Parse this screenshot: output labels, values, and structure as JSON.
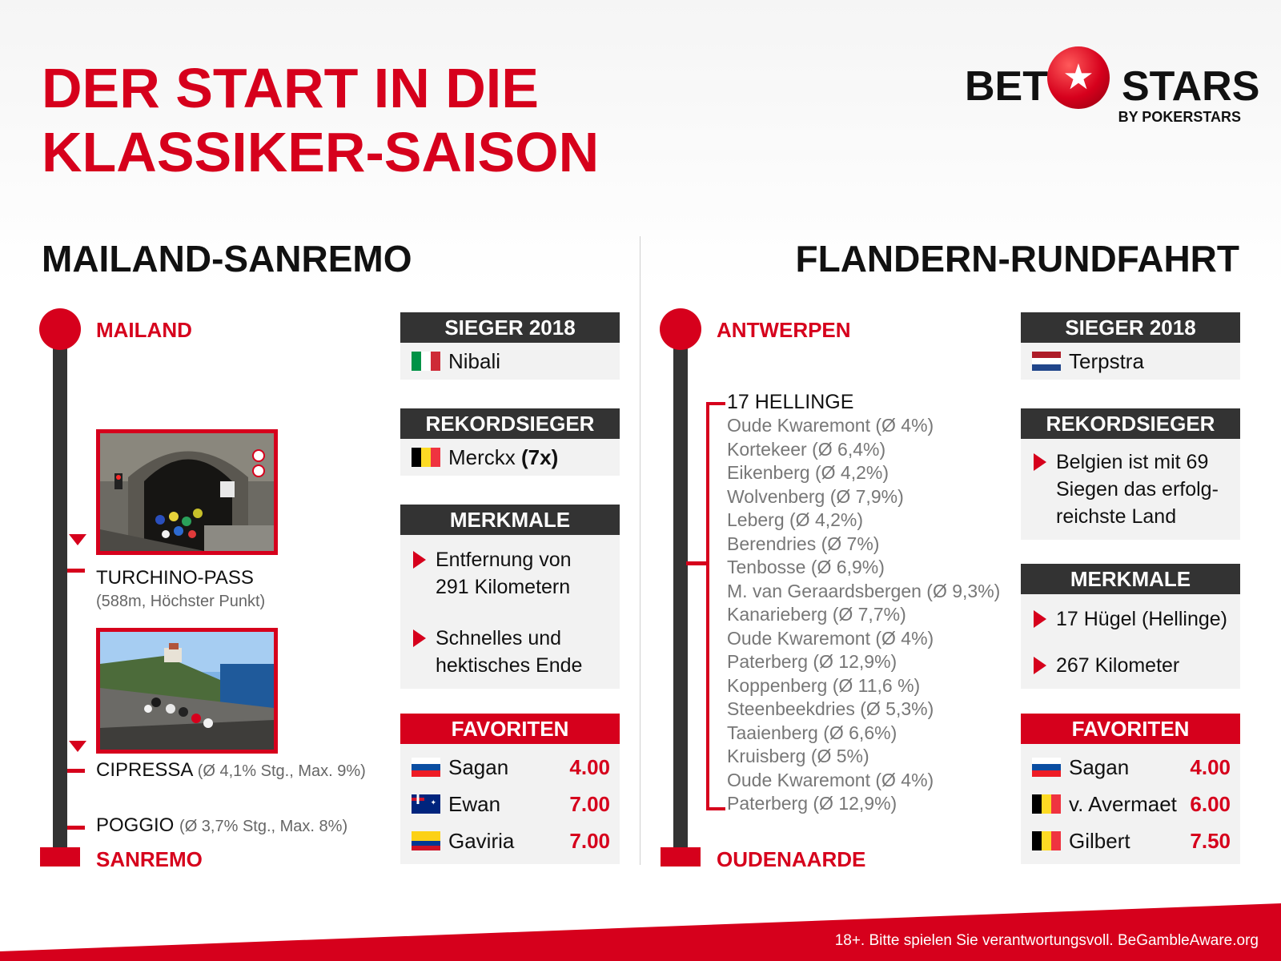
{
  "title": {
    "line1": "DER START IN DIE",
    "line2": "KLASSIKER-SAISON"
  },
  "logo": {
    "left": "BET",
    "right": "STARS",
    "sub": "BY POKERSTARS",
    "icon": "star-icon"
  },
  "left": {
    "section_title": "MAILAND-SANREMO",
    "start_city": "MAILAND",
    "end_city": "SANREMO",
    "stops": [
      {
        "name": "TURCHINO-PASS",
        "detail": "(588m, Höchster Punkt)"
      },
      {
        "name": "CIPRESSA",
        "detail": "(Ø 4,1% Stg., Max. 9%)"
      },
      {
        "name": "POGGIO",
        "detail": "(Ø 3,7% Stg., Max. 8%)"
      }
    ],
    "sieger": {
      "header": "SIEGER 2018",
      "name": "Nibali",
      "flag": "italy-flag"
    },
    "rekord": {
      "header": "REKORDSIEGER",
      "name": "Merckx",
      "count": "(7x)",
      "flag": "belgium-flag"
    },
    "merkmale": {
      "header": "MERKMALE",
      "items": [
        {
          "line1": "Entfernung von",
          "line2": "291 Kilometern"
        },
        {
          "line1": "Schnelles und",
          "line2": "hektisches Ende"
        }
      ]
    },
    "favoriten": {
      "header": "FAVORITEN",
      "rows": [
        {
          "name": "Sagan",
          "odd": "4.00",
          "flag": "slovakia-flag"
        },
        {
          "name": "Ewan",
          "odd": "7.00",
          "flag": "australia-flag"
        },
        {
          "name": "Gaviria",
          "odd": "7.00",
          "flag": "colombia-flag"
        }
      ]
    }
  },
  "right": {
    "section_title": "FLANDERN-RUNDFAHRT",
    "start_city": "ANTWERPEN",
    "end_city": "OUDENAARDE",
    "hellinge_header": "17 HELLINGE",
    "hellinge": [
      "Oude Kwaremont (Ø 4%)",
      "Kortekeer (Ø 6,4%)",
      "Eikenberg (Ø 4,2%)",
      "Wolvenberg (Ø 7,9%)",
      "Leberg (Ø 4,2%)",
      "Berendries (Ø 7%)",
      "Tenbosse (Ø 6,9%)",
      "M. van Geraardsbergen (Ø 9,3%)",
      "Kanarieberg (Ø 7,7%)",
      "Oude Kwaremont (Ø 4%)",
      "Paterberg (Ø 12,9%)",
      "Koppenberg (Ø 11,6 %)",
      "Steenbeekdries (Ø 5,3%)",
      "Taaienberg (Ø 6,6%)",
      "Kruisberg (Ø 5%)",
      "Oude Kwaremont (Ø 4%)",
      "Paterberg (Ø 12,9%)"
    ],
    "sieger": {
      "header": "SIEGER 2018",
      "name": "Terpstra",
      "flag": "netherlands-flag"
    },
    "rekord": {
      "header": "REKORDSIEGER",
      "line1": "Belgien ist mit 69",
      "line2": "Siegen das erfolg-",
      "line3": "reichste Land"
    },
    "merkmale": {
      "header": "MERKMALE",
      "items": [
        "17 Hügel (Hellinge)",
        "267 Kilometer"
      ]
    },
    "favoriten": {
      "header": "FAVORITEN",
      "rows": [
        {
          "name": "Sagan",
          "odd": "4.00",
          "flag": "slovakia-flag"
        },
        {
          "name": "v. Avermaet",
          "odd": "6.00",
          "flag": "belgium-flag"
        },
        {
          "name": "Gilbert",
          "odd": "7.50",
          "flag": "belgium-flag"
        }
      ]
    }
  },
  "footer": {
    "text": "18+. Bitte spielen Sie verantwortungsvoll. BeGambleAware.org"
  },
  "colors": {
    "accent": "#d6001c",
    "dark": "#333333",
    "panel": "#f2f2f2"
  }
}
